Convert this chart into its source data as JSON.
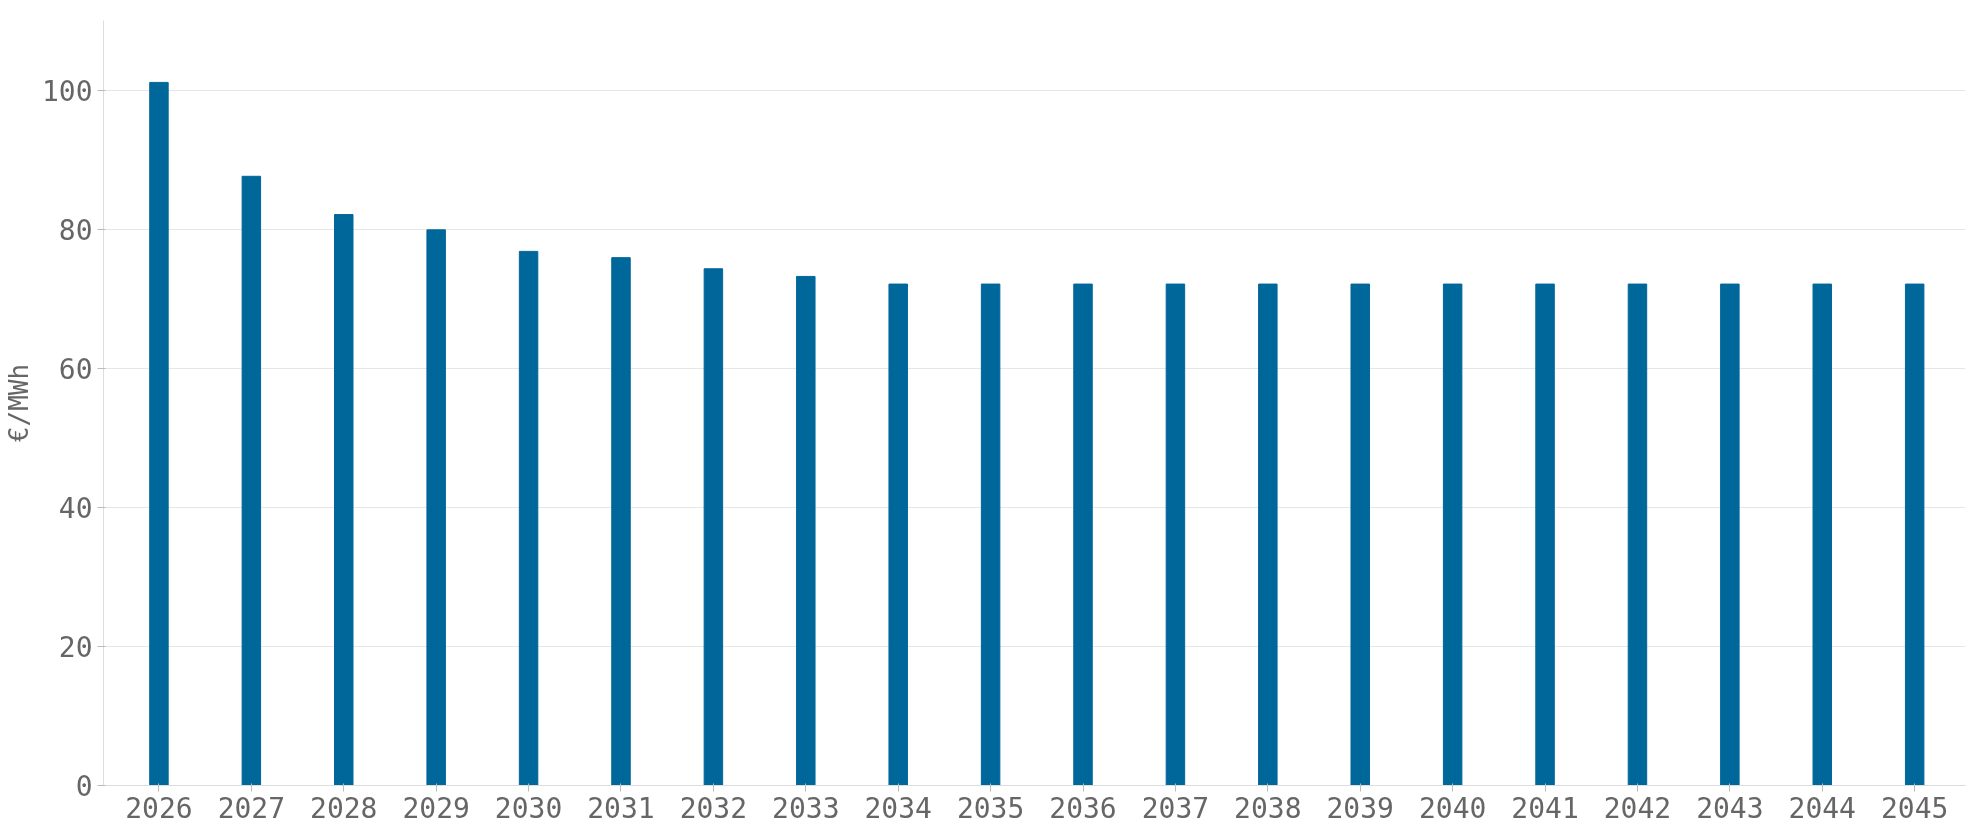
{
  "chart_data": {
    "type": "bar",
    "ylabel": "€/MWh",
    "categories": [
      "2026",
      "2027",
      "2028",
      "2029",
      "2030",
      "2031",
      "2032",
      "2033",
      "2034",
      "2035",
      "2036",
      "2037",
      "2038",
      "2039",
      "2040",
      "2041",
      "2042",
      "2043",
      "2044",
      "2045"
    ],
    "values": [
      101.1,
      87.6,
      82.1,
      79.9,
      76.8,
      75.9,
      74.3,
      73.2,
      72.1,
      72.1,
      72.1,
      72.1,
      72.1,
      72.1,
      72.1,
      72.1,
      72.1,
      72.1,
      72.1,
      72.1
    ],
    "color": "#00679a",
    "ylim": [
      0,
      110
    ],
    "yticks": [
      0,
      20,
      40,
      60,
      80,
      100
    ],
    "grid": "y"
  }
}
